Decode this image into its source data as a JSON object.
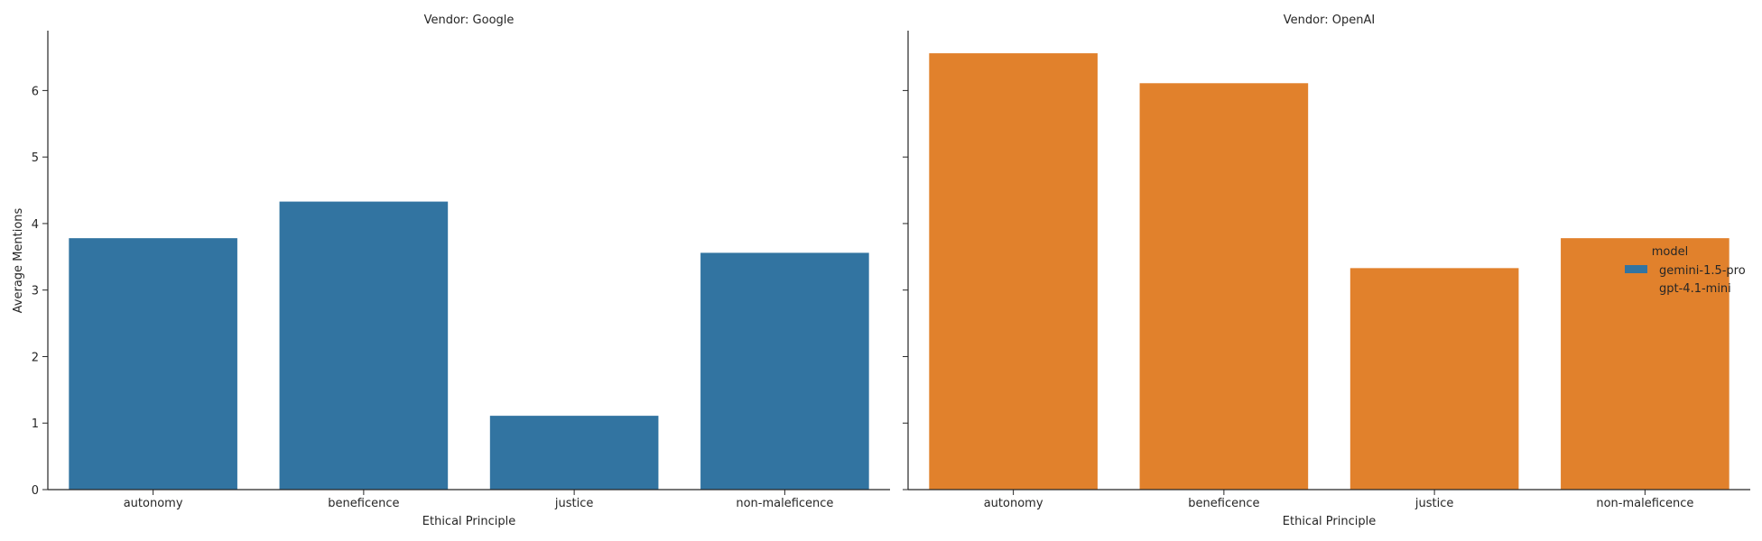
{
  "chart_data": {
    "type": "bar",
    "ylabel": "Average Mentions",
    "ylim": [
      0,
      6.9
    ],
    "yticks": [
      0,
      1,
      2,
      3,
      4,
      5,
      6
    ],
    "legend": {
      "title": "model",
      "placement": "right",
      "entries": [
        {
          "name": "gemini-1.5-pro",
          "color": "#3274a1"
        },
        {
          "name": "gpt-4.1-mini",
          "color": "#e1812c"
        }
      ]
    },
    "panels": [
      {
        "title": "Vendor: Google",
        "xlabel": "Ethical Principle",
        "categories": [
          "autonomy",
          "beneficence",
          "justice",
          "non-maleficence"
        ],
        "series": [
          {
            "name": "gemini-1.5-pro",
            "color": "#3274a1",
            "values": [
              3.78,
              4.33,
              1.11,
              3.56
            ]
          }
        ]
      },
      {
        "title": "Vendor: OpenAI",
        "xlabel": "Ethical Principle",
        "categories": [
          "autonomy",
          "beneficence",
          "justice",
          "non-maleficence"
        ],
        "series": [
          {
            "name": "gpt-4.1-mini",
            "color": "#e1812c",
            "values": [
              6.56,
              6.11,
              3.33,
              3.78
            ]
          }
        ]
      }
    ]
  }
}
